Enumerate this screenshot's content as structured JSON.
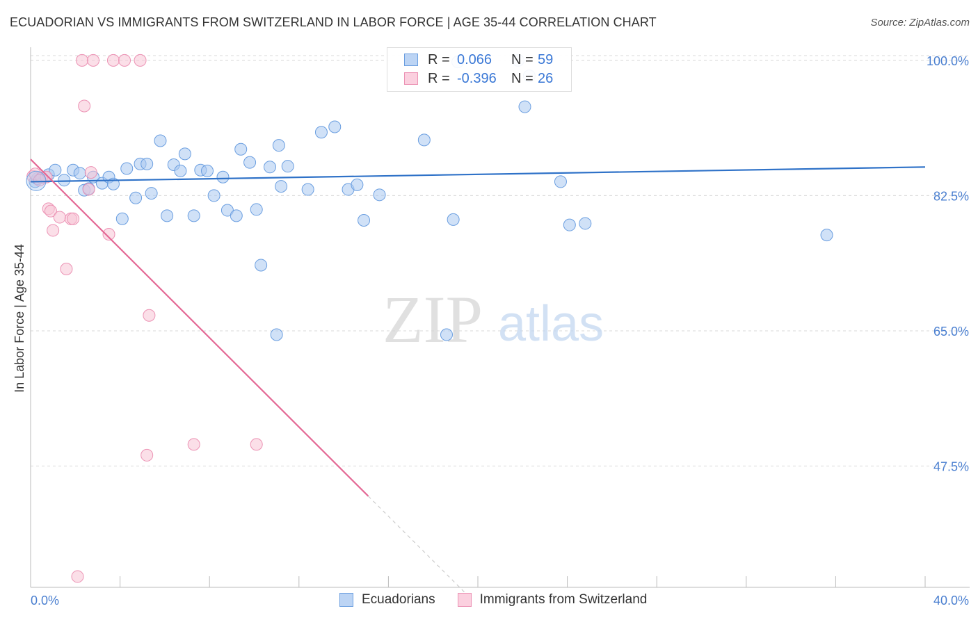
{
  "title": "ECUADORIAN VS IMMIGRANTS FROM SWITZERLAND IN LABOR FORCE | AGE 35-44 CORRELATION CHART",
  "source": "Source: ZipAtlas.com",
  "watermark": {
    "zip": "ZIP",
    "atlas": "atlas"
  },
  "legend": {
    "r_label": "R =",
    "n_label": "N =",
    "rows": [
      {
        "name": "Ecuadorians",
        "r": "0.066",
        "n": "59"
      },
      {
        "name": "Immigrants from Switzerland",
        "r": "-0.396",
        "n": "26"
      }
    ]
  },
  "chart_data": {
    "type": "scatter",
    "title": "ECUADORIAN VS IMMIGRANTS FROM SWITZERLAND IN LABOR FORCE | AGE 35-44 CORRELATION CHART",
    "xlabel": "",
    "ylabel": "In Labor Force | Age 35-44",
    "xlim": [
      0,
      40
    ],
    "ylim": [
      31.8,
      101.7
    ],
    "x_tick_labels": [
      {
        "value": 0,
        "label": "0.0%"
      },
      {
        "value": 40,
        "label": "40.0%"
      }
    ],
    "y_tick_labels": [
      {
        "value": 100,
        "label": "100.0%"
      },
      {
        "value": 82.5,
        "label": "82.5%"
      },
      {
        "value": 65,
        "label": "65.0%"
      },
      {
        "value": 47.5,
        "label": "47.5%"
      }
    ],
    "series": [
      {
        "name": "Ecuadorians",
        "color": "#a9c8f0",
        "stroke": "#6a9ee0",
        "trend": {
          "x0": 0,
          "y0": 84.3,
          "x1": 40,
          "y1": 86.2,
          "color": "#2f72c8"
        },
        "points": [
          [
            0.2,
            84.3
          ],
          [
            0.5,
            84.8
          ],
          [
            0.8,
            85.2
          ],
          [
            1.1,
            85.8
          ],
          [
            1.5,
            84.5
          ],
          [
            1.9,
            85.8
          ],
          [
            2.2,
            85.4
          ],
          [
            2.4,
            83.2
          ],
          [
            2.6,
            83.4
          ],
          [
            2.8,
            84.9
          ],
          [
            3.2,
            84.1
          ],
          [
            3.5,
            84.9
          ],
          [
            3.7,
            84.0
          ],
          [
            4.1,
            79.5
          ],
          [
            4.3,
            86.0
          ],
          [
            4.7,
            82.2
          ],
          [
            4.9,
            86.6
          ],
          [
            5.2,
            86.6
          ],
          [
            5.4,
            82.8
          ],
          [
            5.8,
            89.6
          ],
          [
            6.1,
            79.9
          ],
          [
            6.4,
            86.5
          ],
          [
            6.7,
            85.7
          ],
          [
            6.9,
            87.9
          ],
          [
            7.3,
            79.9
          ],
          [
            7.6,
            85.8
          ],
          [
            7.9,
            85.7
          ],
          [
            8.2,
            82.5
          ],
          [
            8.6,
            84.9
          ],
          [
            8.8,
            80.6
          ],
          [
            9.2,
            79.9
          ],
          [
            9.4,
            88.5
          ],
          [
            9.8,
            86.8
          ],
          [
            10.1,
            80.7
          ],
          [
            10.3,
            73.5
          ],
          [
            10.7,
            86.2
          ],
          [
            11.0,
            64.5
          ],
          [
            11.1,
            89.0
          ],
          [
            11.2,
            83.7
          ],
          [
            11.5,
            86.3
          ],
          [
            12.4,
            83.3
          ],
          [
            13.0,
            90.7
          ],
          [
            13.6,
            91.4
          ],
          [
            14.2,
            83.3
          ],
          [
            14.6,
            83.9
          ],
          [
            14.9,
            79.3
          ],
          [
            15.6,
            82.6
          ],
          [
            17.6,
            89.7
          ],
          [
            18.6,
            64.5
          ],
          [
            18.9,
            79.4
          ],
          [
            19.1,
            99.8
          ],
          [
            21.8,
            100.0
          ],
          [
            22.1,
            94.0
          ],
          [
            22.3,
            98.0
          ],
          [
            23.7,
            84.3
          ],
          [
            24.1,
            78.7
          ],
          [
            24.8,
            78.9
          ],
          [
            35.6,
            77.4
          ],
          [
            0.3,
            84.7
          ]
        ]
      },
      {
        "name": "Immigrants from Switzerland",
        "color": "#f8c4d6",
        "stroke": "#ec92b4",
        "trend": {
          "x0": 0,
          "y0": 87.2,
          "x1": 15.1,
          "y1": 43.6,
          "dash_x1": 19.6,
          "dash_y1": 30.6,
          "color": "#e46a96"
        },
        "points": [
          [
            0.1,
            85.0
          ],
          [
            0.2,
            85.3
          ],
          [
            0.5,
            84.8
          ],
          [
            0.7,
            84.9
          ],
          [
            0.8,
            80.8
          ],
          [
            0.9,
            80.5
          ],
          [
            1.0,
            78.0
          ],
          [
            1.3,
            79.7
          ],
          [
            1.6,
            73.0
          ],
          [
            1.8,
            79.5
          ],
          [
            1.9,
            79.5
          ],
          [
            2.1,
            33.2
          ],
          [
            2.3,
            100.0
          ],
          [
            2.4,
            94.1
          ],
          [
            2.6,
            83.3
          ],
          [
            2.7,
            85.5
          ],
          [
            2.8,
            100.0
          ],
          [
            3.5,
            77.5
          ],
          [
            3.7,
            100.0
          ],
          [
            4.2,
            100.0
          ],
          [
            4.9,
            100.0
          ],
          [
            5.2,
            48.9
          ],
          [
            5.3,
            67.0
          ],
          [
            7.3,
            50.3
          ],
          [
            10.1,
            50.3
          ],
          [
            0.4,
            84.5
          ]
        ]
      }
    ]
  }
}
